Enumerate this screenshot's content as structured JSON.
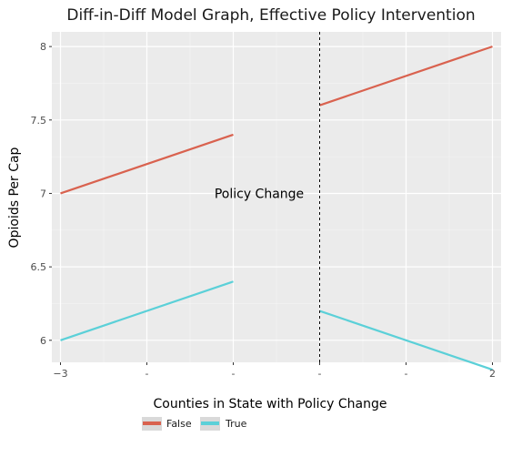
{
  "chart_data": {
    "type": "line",
    "title": "Diff-in-Diff Model Graph, Effective Policy Intervention",
    "xlabel": "",
    "ylabel": "Opioids Per Cap",
    "xlim": [
      -3.1,
      2.1
    ],
    "ylim": [
      5.85,
      8.1
    ],
    "x_ticks": [
      -3,
      -2,
      -1,
      0,
      1,
      2
    ],
    "x_tick_labels": [
      "−3",
      "-",
      "-",
      "-",
      "-",
      "2"
    ],
    "y_ticks": [
      6,
      6.5,
      7,
      7.5,
      8
    ],
    "y_tick_labels": [
      "6",
      "6.5",
      "7",
      "7.5",
      "8"
    ],
    "grid": true,
    "vline": {
      "x": 0,
      "style": "dashed"
    },
    "annotations": [
      {
        "text": "Policy Change",
        "x": -0.7,
        "y": 7
      }
    ],
    "legend": {
      "title": "Counties in State with Policy Change",
      "placement": "bottom",
      "entries": [
        "False",
        "True"
      ]
    },
    "series": [
      {
        "name": "False",
        "color": "#d9624f",
        "segments": [
          {
            "x": [
              -3,
              -1
            ],
            "y": [
              7.0,
              7.4
            ]
          },
          {
            "x": [
              0,
              2
            ],
            "y": [
              7.6,
              8.0
            ]
          }
        ]
      },
      {
        "name": "True",
        "color": "#5bd0d8",
        "segments": [
          {
            "x": [
              -3,
              -1
            ],
            "y": [
              6.0,
              6.4
            ]
          },
          {
            "x": [
              0,
              2
            ],
            "y": [
              6.2,
              5.8
            ]
          }
        ]
      }
    ]
  }
}
